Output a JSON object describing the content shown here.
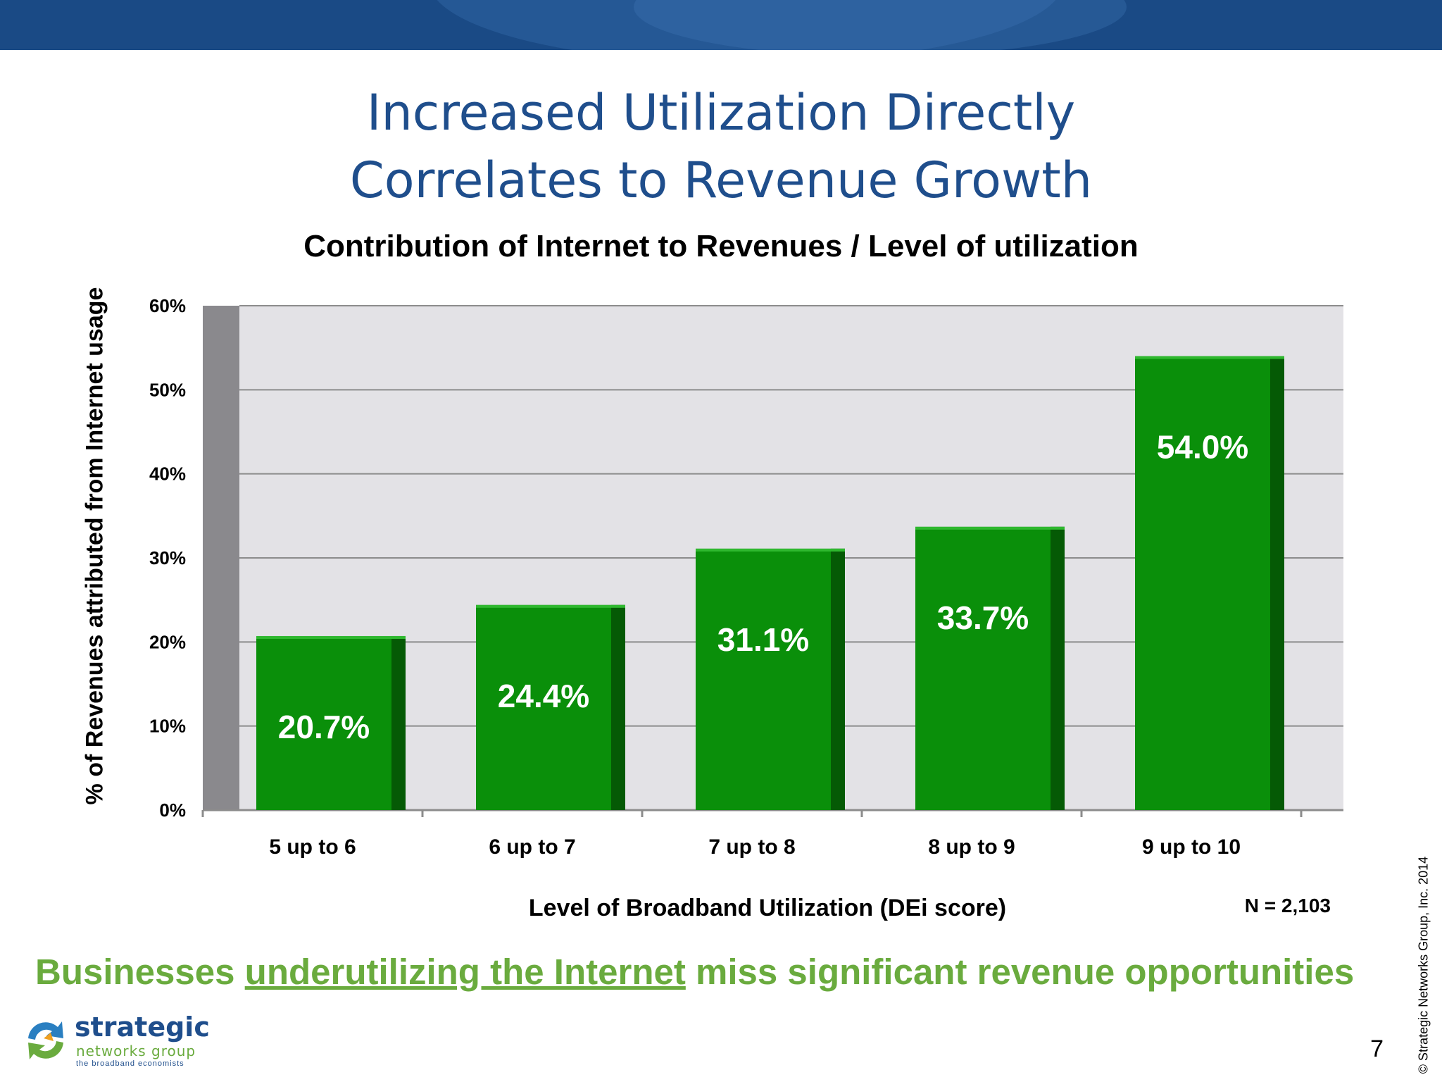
{
  "slide": {
    "title_line1": "Increased Utilization Directly",
    "title_line2": "Correlates to Revenue Growth",
    "tagline_prefix": "Businesses",
    "tagline_underlined": "underutilizing the Internet",
    "tagline_suffix": "miss significant revenue opportunities",
    "sample_size": "N = 2,103",
    "copyright": "© Strategic Networks Group, Inc. 2014",
    "page_number": "7",
    "logo": {
      "line1": "strategic",
      "line2": "networks group",
      "line3": "the broadband economists"
    },
    "colors": {
      "header_bar": "#1a4a85",
      "title": "#1f4e8c",
      "tagline": "#6aab3e",
      "bar": "#0a8f0a",
      "plot_background": "#e3e2e6"
    }
  },
  "chart_data": {
    "type": "bar",
    "title": "Contribution of Internet to Revenues / Level of utilization",
    "xlabel": "Level of Broadband Utilization (DEi score)",
    "ylabel": "% of Revenues attributed from Internet usage",
    "categories": [
      "5 up to 6",
      "6 up to 7",
      "7 up to 8",
      "8 up to 9",
      "9 up to 10"
    ],
    "values": [
      20.7,
      24.4,
      31.1,
      33.7,
      54.0
    ],
    "data_labels": [
      "20.7%",
      "24.4%",
      "31.1%",
      "33.7%",
      "54.0%"
    ],
    "ylim": [
      0,
      60
    ],
    "yticks": [
      0,
      10,
      20,
      30,
      40,
      50,
      60
    ],
    "ytick_labels": [
      "0%",
      "10%",
      "20%",
      "30%",
      "40%",
      "50%",
      "60%"
    ],
    "grid": true,
    "legend": "none"
  }
}
